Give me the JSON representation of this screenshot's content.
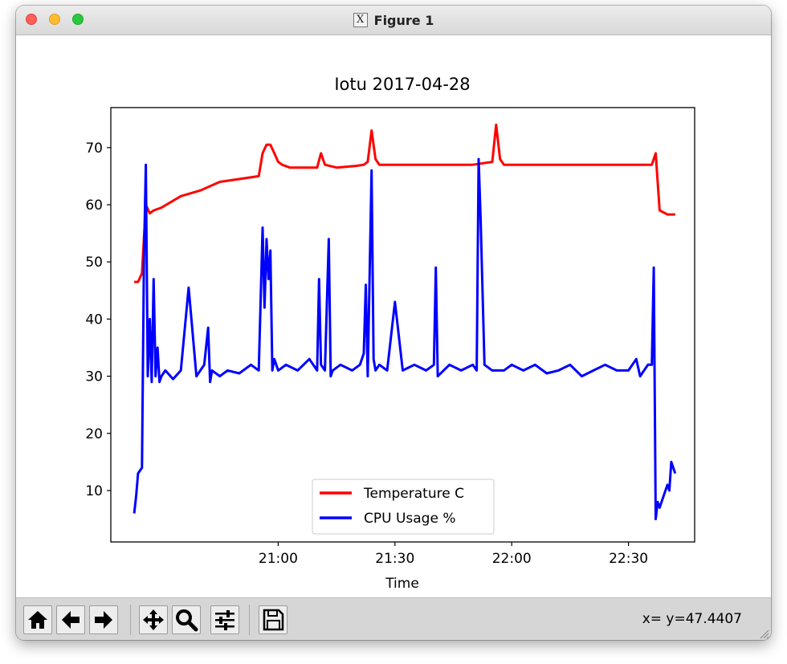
{
  "window": {
    "title": "Figure 1",
    "title_icon": "x11-icon"
  },
  "toolbar": {
    "buttons": [
      {
        "name": "home-button",
        "icon": "home-icon"
      },
      {
        "name": "back-button",
        "icon": "arrow-left-icon"
      },
      {
        "name": "forward-button",
        "icon": "arrow-right-icon"
      },
      {
        "name": "pan-button",
        "icon": "move-icon"
      },
      {
        "name": "zoom-button",
        "icon": "magnifier-icon"
      },
      {
        "name": "configure-subplots-button",
        "icon": "sliders-icon"
      },
      {
        "name": "save-button",
        "icon": "floppy-icon"
      }
    ],
    "coords": "x= y=47.4407"
  },
  "chart_data": {
    "type": "line",
    "title": "Iotu 2017-04-28",
    "xlabel": "Time",
    "ylabel": "",
    "xlim": [
      "20:17",
      "22:47"
    ],
    "ylim": [
      1,
      77
    ],
    "xticks": [
      "21:00",
      "21:30",
      "22:00",
      "22:30"
    ],
    "yticks": [
      10,
      20,
      30,
      40,
      50,
      60,
      70
    ],
    "grid": false,
    "legend_position": "lower-center",
    "series": [
      {
        "name": "Temperature C",
        "color": "#ff0000",
        "x": [
          "20:23",
          "20:24",
          "20:25",
          "20:26",
          "20:27",
          "20:28",
          "20:30",
          "20:35",
          "20:40",
          "20:45",
          "20:50",
          "20:55",
          "20:56",
          "20:57",
          "20:58",
          "20:59",
          "21:00",
          "21:01",
          "21:03",
          "21:05",
          "21:08",
          "21:10",
          "21:11",
          "21:12",
          "21:15",
          "21:20",
          "21:22",
          "21:23",
          "21:24",
          "21:25",
          "21:26",
          "21:30",
          "21:40",
          "21:50",
          "21:55",
          "21:56",
          "21:57",
          "21:58",
          "22:00",
          "22:10",
          "22:20",
          "22:30",
          "22:35",
          "22:36",
          "22:37",
          "22:38",
          "22:40",
          "22:42"
        ],
        "y": [
          46.5,
          46.5,
          48,
          60,
          58.5,
          59,
          59.5,
          61.5,
          62.5,
          64,
          64.5,
          65,
          69,
          70.5,
          70.5,
          69,
          67.5,
          67,
          66.5,
          66.5,
          66.5,
          66.5,
          69,
          67,
          66.5,
          66.8,
          67,
          67.5,
          73,
          68,
          67,
          67,
          67,
          67,
          67.5,
          74,
          68,
          67,
          67,
          67,
          67,
          67,
          67,
          67,
          69,
          59,
          58.3,
          58.3
        ]
      },
      {
        "name": "CPU Usage %",
        "color": "#0000ff",
        "x": [
          "20:23",
          "20:23.5",
          "20:24",
          "20:25",
          "20:25.5",
          "20:26",
          "20:26.5",
          "20:27",
          "20:27.5",
          "20:28",
          "20:28.5",
          "20:29",
          "20:29.5",
          "20:30",
          "20:31",
          "20:33",
          "20:35",
          "20:37",
          "20:39",
          "20:41",
          "20:42",
          "20:42.5",
          "20:43",
          "20:45",
          "20:47",
          "20:50",
          "20:53",
          "20:55",
          "20:56",
          "20:56.5",
          "20:57",
          "20:57.5",
          "20:58",
          "20:58.5",
          "20:59",
          "21:00",
          "21:02",
          "21:05",
          "21:08",
          "21:10",
          "21:10.5",
          "21:11",
          "21:12",
          "21:13",
          "21:13.5",
          "21:14",
          "21:16",
          "21:19",
          "21:21",
          "21:22",
          "21:22.5",
          "21:23",
          "21:24",
          "21:24.5",
          "21:25",
          "21:26",
          "21:28",
          "21:30",
          "21:32",
          "21:35",
          "21:38",
          "21:40",
          "21:40.5",
          "21:41",
          "21:44",
          "21:47",
          "21:50",
          "21:51",
          "21:51.5",
          "21:52",
          "21:53",
          "21:55",
          "21:58",
          "22:00",
          "22:03",
          "22:06",
          "22:09",
          "22:12",
          "22:15",
          "22:18",
          "22:21",
          "22:24",
          "22:27",
          "22:30",
          "22:32",
          "22:33",
          "22:35",
          "22:36",
          "22:36.5",
          "22:37",
          "22:37.5",
          "22:38",
          "22:39",
          "22:40",
          "22:40.5",
          "22:41",
          "22:42"
        ],
        "y": [
          6,
          9,
          13,
          14,
          50,
          67,
          30,
          40,
          29,
          47,
          30,
          35,
          29,
          30,
          31,
          29.5,
          31,
          45.5,
          30,
          32,
          38.5,
          29,
          31,
          30,
          31,
          30.5,
          32,
          31,
          56,
          42,
          54,
          47,
          52,
          31,
          33,
          31,
          32,
          31,
          33,
          31,
          47,
          32,
          31,
          54,
          30,
          31,
          32,
          31,
          32,
          34,
          46,
          30,
          66,
          33,
          31,
          32,
          31,
          43,
          31,
          32,
          31,
          32,
          49,
          30,
          32,
          31,
          32,
          31,
          68,
          58,
          32,
          31,
          31,
          32,
          31,
          32,
          30.5,
          31,
          32,
          30,
          31,
          32,
          31,
          31,
          33,
          30,
          32,
          32,
          49,
          5,
          8,
          7,
          9,
          11,
          10,
          15,
          13
        ]
      }
    ]
  }
}
